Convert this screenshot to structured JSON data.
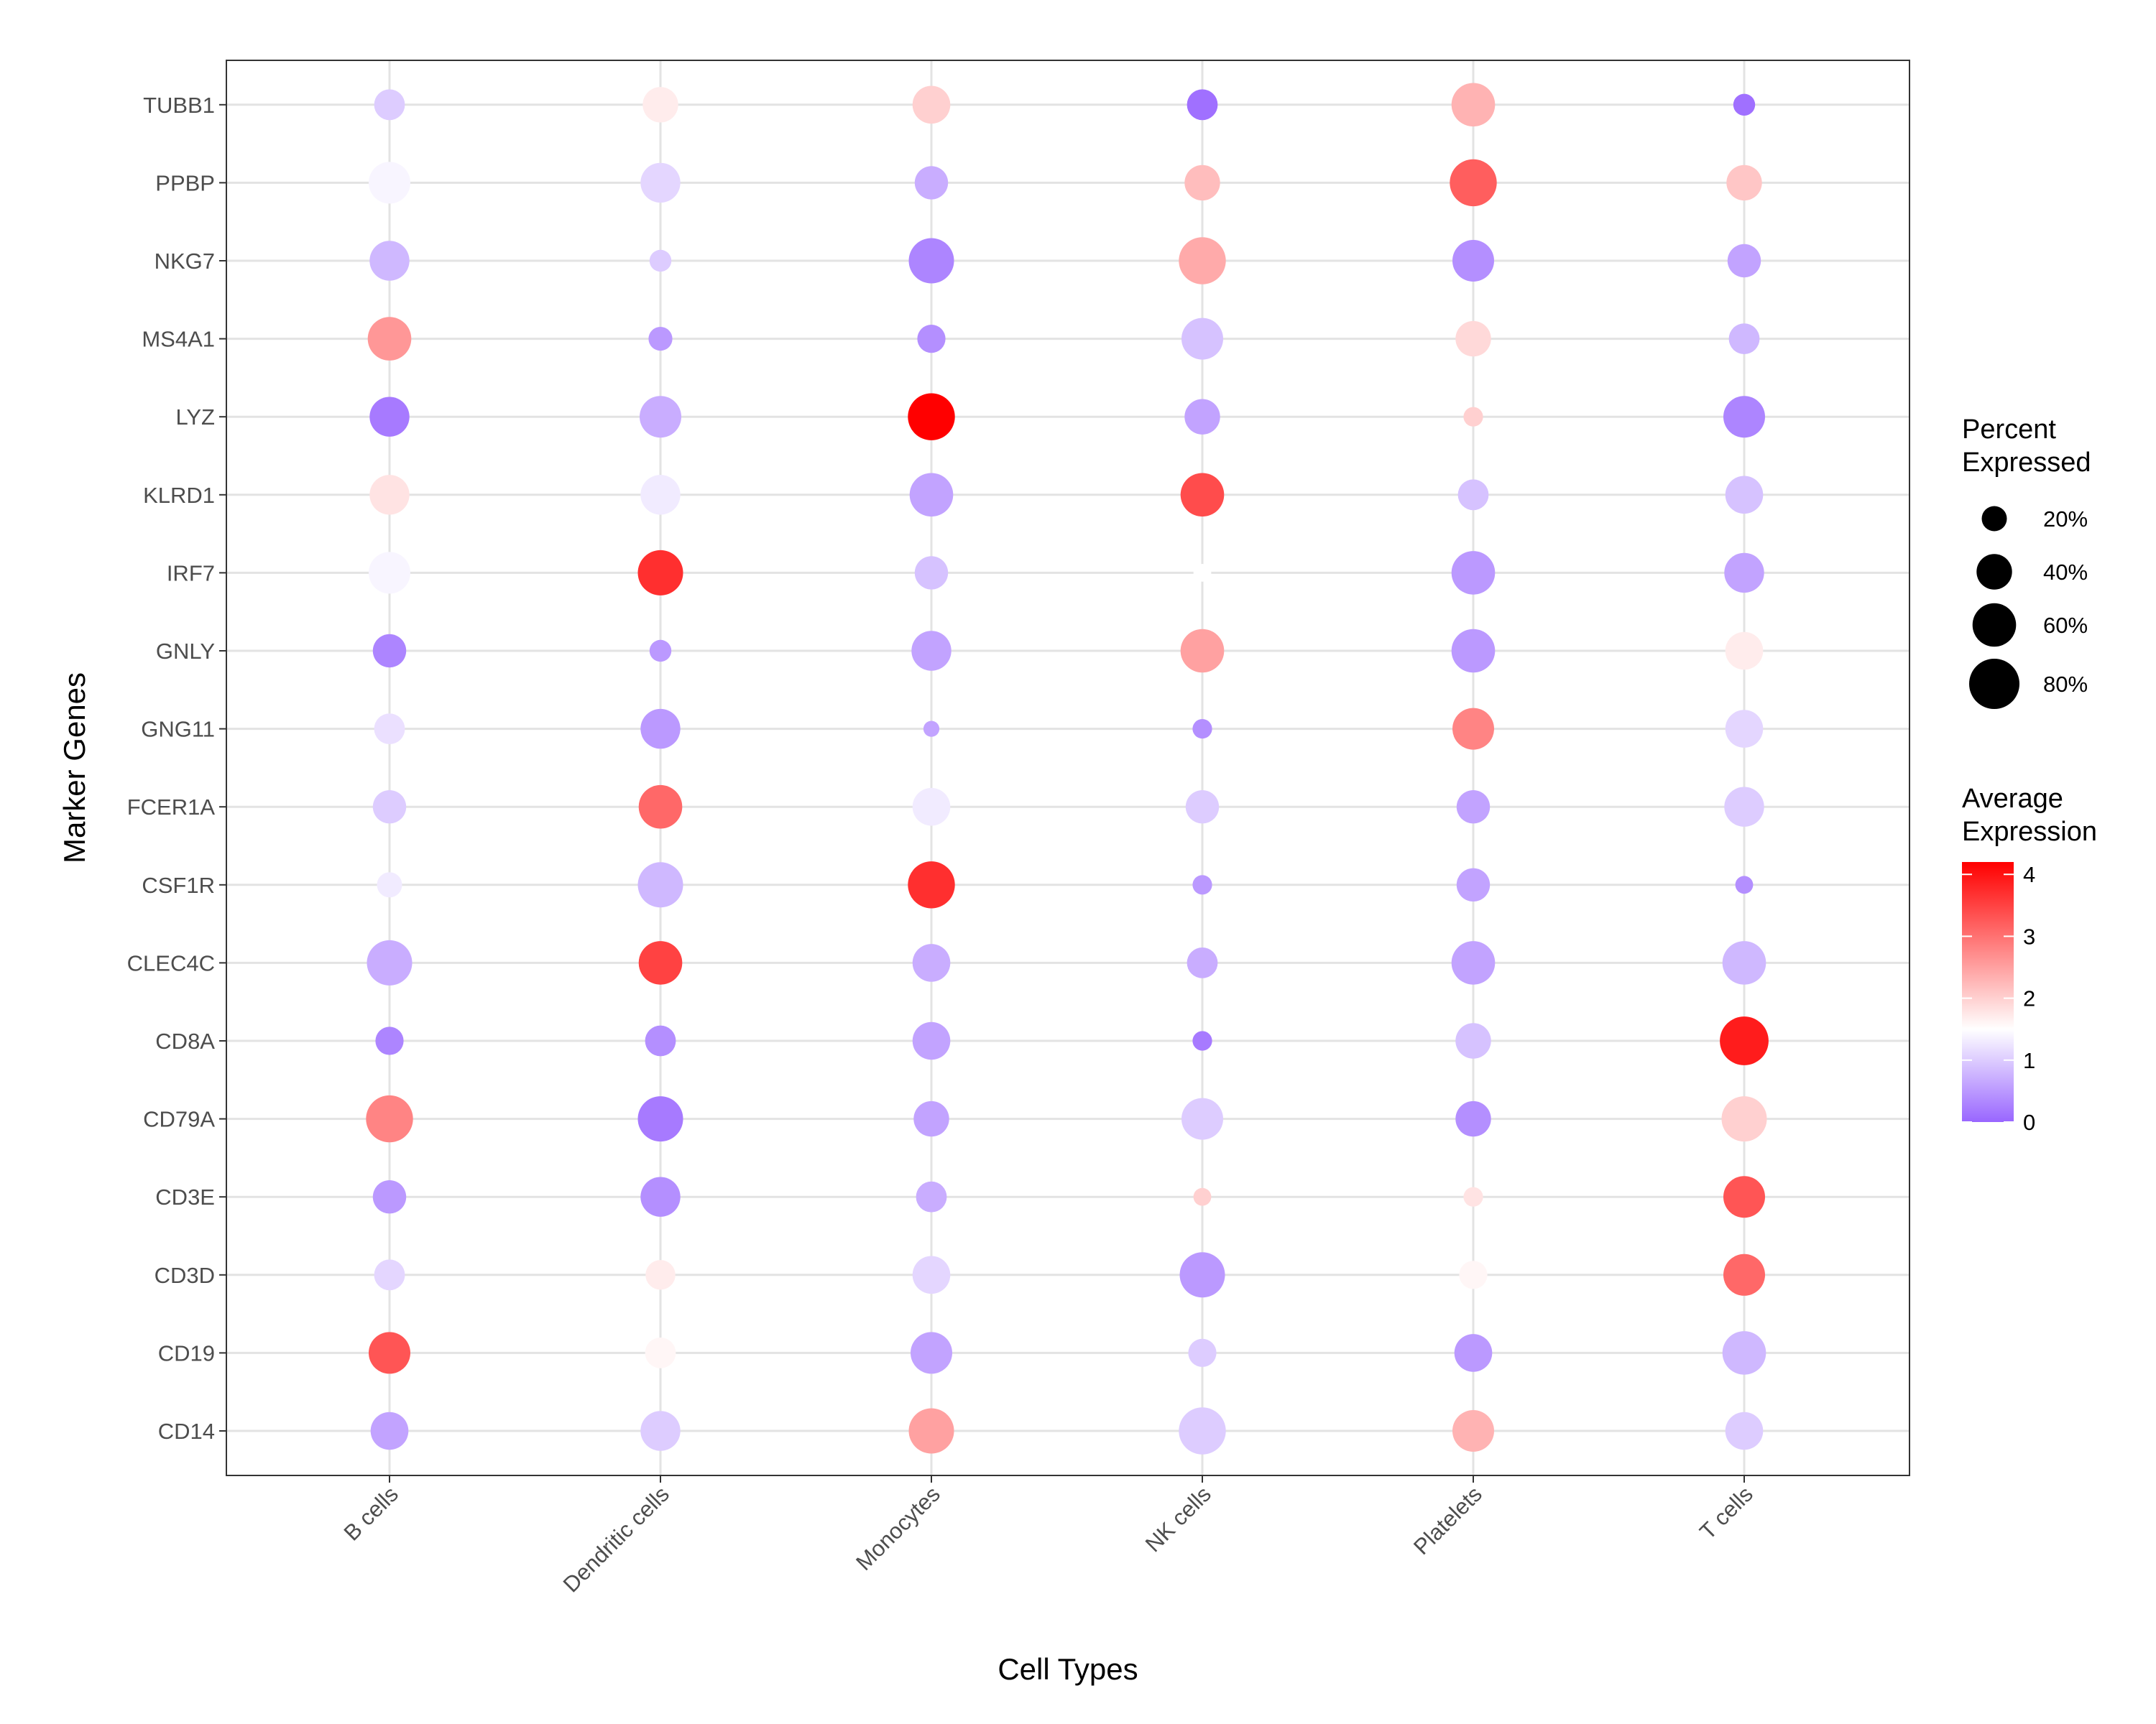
{
  "chart_data": {
    "type": "dotplot",
    "xlabel": "Cell Types",
    "ylabel": "Marker Genes",
    "categories": [
      "B cells",
      "Dendritic cells",
      "Monocytes",
      "NK cells",
      "Platelets",
      "T cells"
    ],
    "genes": [
      "CD14",
      "CD19",
      "CD3D",
      "CD3E",
      "CD79A",
      "CD8A",
      "CLEC4C",
      "CSF1R",
      "FCER1A",
      "GNG11",
      "GNLY",
      "IRF7",
      "KLRD1",
      "LYZ",
      "MS4A1",
      "NKG7",
      "PPBP",
      "TUBB1"
    ],
    "avg_expression": [
      [
        0.6,
        1.0,
        2.5,
        1.0,
        2.3,
        1.0
      ],
      [
        3.3,
        1.6,
        0.6,
        1.0,
        0.5,
        0.8
      ],
      [
        1.1,
        1.7,
        1.1,
        0.5,
        1.6,
        3.1
      ],
      [
        0.5,
        0.4,
        0.7,
        2.0,
        1.8,
        3.3
      ],
      [
        2.8,
        0.2,
        0.6,
        1.0,
        0.4,
        2.0
      ],
      [
        0.3,
        0.4,
        0.6,
        0.2,
        0.9,
        3.9
      ],
      [
        0.7,
        3.5,
        0.7,
        0.7,
        0.6,
        0.8
      ],
      [
        1.3,
        0.8,
        3.7,
        0.5,
        0.6,
        0.4
      ],
      [
        1.0,
        3.1,
        1.3,
        1.0,
        0.6,
        1.0
      ],
      [
        1.2,
        0.5,
        0.6,
        0.4,
        2.8,
        1.1
      ],
      [
        0.3,
        0.5,
        0.6,
        2.5,
        0.5,
        1.7
      ],
      [
        1.4,
        3.7,
        0.9,
        1.5,
        0.5,
        0.6
      ],
      [
        1.8,
        1.3,
        0.6,
        3.4,
        0.9,
        0.9
      ],
      [
        0.2,
        0.7,
        4.2,
        0.6,
        2.0,
        0.3
      ],
      [
        2.6,
        0.5,
        0.4,
        0.9,
        1.9,
        0.8
      ],
      [
        0.8,
        1.0,
        0.3,
        2.4,
        0.4,
        0.6
      ],
      [
        1.4,
        1.1,
        0.7,
        2.2,
        3.2,
        2.1
      ],
      [
        1.0,
        1.7,
        2.0,
        0.1,
        2.3,
        0.1
      ]
    ],
    "pct_expressed": [
      [
        45,
        50,
        65,
        70,
        55,
        45
      ],
      [
        55,
        30,
        55,
        25,
        45,
        60
      ],
      [
        30,
        28,
        45,
        65,
        25,
        55
      ],
      [
        35,
        50,
        30,
        10,
        12,
        55
      ],
      [
        70,
        65,
        40,
        55,
        40,
        65
      ],
      [
        25,
        30,
        45,
        12,
        40,
        75
      ],
      [
        65,
        60,
        45,
        30,
        60,
        60
      ],
      [
        20,
        65,
        70,
        12,
        35,
        10
      ],
      [
        35,
        60,
        45,
        35,
        35,
        50
      ],
      [
        30,
        50,
        8,
        12,
        55,
        45
      ],
      [
        35,
        15,
        50,
        60,
        60,
        45
      ],
      [
        55,
        65,
        35,
        10,
        60,
        50
      ],
      [
        50,
        50,
        60,
        60,
        30,
        45
      ],
      [
        50,
        55,
        70,
        40,
        12,
        55
      ],
      [
        60,
        18,
        25,
        55,
        40,
        30
      ],
      [
        50,
        15,
        65,
        70,
        55,
        35
      ],
      [
        55,
        50,
        35,
        40,
        70,
        40
      ],
      [
        30,
        40,
        45,
        30,
        60,
        15
      ]
    ],
    "legend_size": {
      "title_line1": "Percent",
      "title_line2": "Expressed",
      "labels": [
        "20%",
        "40%",
        "60%",
        "80%"
      ],
      "values": [
        20,
        40,
        60,
        80
      ],
      "placement": "right"
    },
    "legend_color": {
      "title_line1": "Average",
      "title_line2": "Expression",
      "labels": [
        "0",
        "1",
        "2",
        "3",
        "4"
      ],
      "values": [
        0,
        1,
        2,
        3,
        4
      ],
      "placement": "right"
    },
    "color_scale": {
      "low": "#9966ff",
      "mid": "#ffffff",
      "high": "#ff0000",
      "midpoint": 1.5,
      "min": 0,
      "max": 4.2
    },
    "grid": true
  }
}
